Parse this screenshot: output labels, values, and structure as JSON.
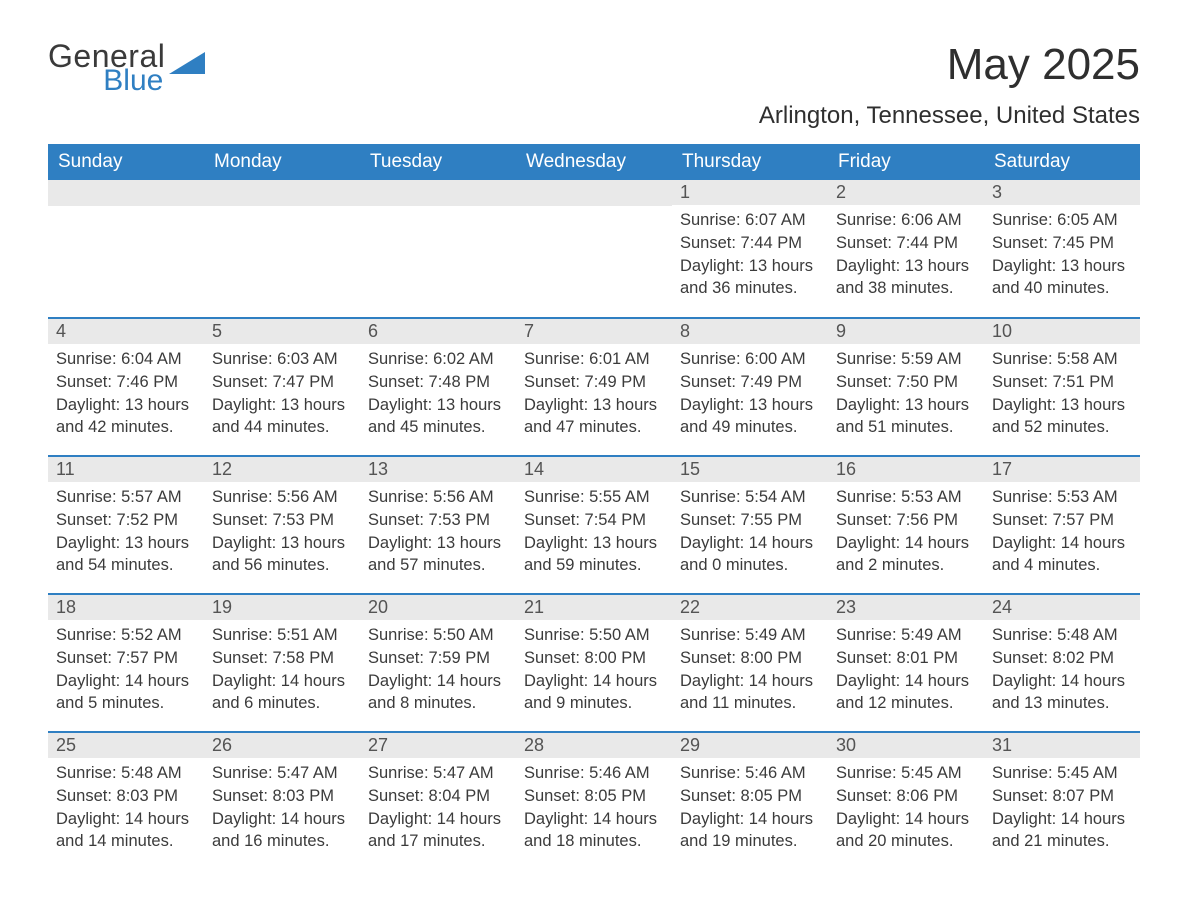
{
  "logo": {
    "general": "General",
    "blue": "Blue"
  },
  "title": "May 2025",
  "subtitle": "Arlington, Tennessee, United States",
  "colors": {
    "header_bg": "#2f7fc2",
    "header_text": "#ffffff",
    "daynum_bg": "#e9e9e9",
    "daynum_text": "#545454",
    "body_text": "#3b3b3b",
    "row_divider": "#2f7fc2",
    "page_bg": "#ffffff",
    "logo_gray": "#3a3a3a",
    "logo_blue": "#2f7fc2"
  },
  "weekdays": [
    "Sunday",
    "Monday",
    "Tuesday",
    "Wednesday",
    "Thursday",
    "Friday",
    "Saturday"
  ],
  "weeks": [
    [
      {
        "day": "",
        "sunrise": "",
        "sunset": "",
        "daylight": ""
      },
      {
        "day": "",
        "sunrise": "",
        "sunset": "",
        "daylight": ""
      },
      {
        "day": "",
        "sunrise": "",
        "sunset": "",
        "daylight": ""
      },
      {
        "day": "",
        "sunrise": "",
        "sunset": "",
        "daylight": ""
      },
      {
        "day": "1",
        "sunrise": "Sunrise: 6:07 AM",
        "sunset": "Sunset: 7:44 PM",
        "daylight": "Daylight: 13 hours and 36 minutes."
      },
      {
        "day": "2",
        "sunrise": "Sunrise: 6:06 AM",
        "sunset": "Sunset: 7:44 PM",
        "daylight": "Daylight: 13 hours and 38 minutes."
      },
      {
        "day": "3",
        "sunrise": "Sunrise: 6:05 AM",
        "sunset": "Sunset: 7:45 PM",
        "daylight": "Daylight: 13 hours and 40 minutes."
      }
    ],
    [
      {
        "day": "4",
        "sunrise": "Sunrise: 6:04 AM",
        "sunset": "Sunset: 7:46 PM",
        "daylight": "Daylight: 13 hours and 42 minutes."
      },
      {
        "day": "5",
        "sunrise": "Sunrise: 6:03 AM",
        "sunset": "Sunset: 7:47 PM",
        "daylight": "Daylight: 13 hours and 44 minutes."
      },
      {
        "day": "6",
        "sunrise": "Sunrise: 6:02 AM",
        "sunset": "Sunset: 7:48 PM",
        "daylight": "Daylight: 13 hours and 45 minutes."
      },
      {
        "day": "7",
        "sunrise": "Sunrise: 6:01 AM",
        "sunset": "Sunset: 7:49 PM",
        "daylight": "Daylight: 13 hours and 47 minutes."
      },
      {
        "day": "8",
        "sunrise": "Sunrise: 6:00 AM",
        "sunset": "Sunset: 7:49 PM",
        "daylight": "Daylight: 13 hours and 49 minutes."
      },
      {
        "day": "9",
        "sunrise": "Sunrise: 5:59 AM",
        "sunset": "Sunset: 7:50 PM",
        "daylight": "Daylight: 13 hours and 51 minutes."
      },
      {
        "day": "10",
        "sunrise": "Sunrise: 5:58 AM",
        "sunset": "Sunset: 7:51 PM",
        "daylight": "Daylight: 13 hours and 52 minutes."
      }
    ],
    [
      {
        "day": "11",
        "sunrise": "Sunrise: 5:57 AM",
        "sunset": "Sunset: 7:52 PM",
        "daylight": "Daylight: 13 hours and 54 minutes."
      },
      {
        "day": "12",
        "sunrise": "Sunrise: 5:56 AM",
        "sunset": "Sunset: 7:53 PM",
        "daylight": "Daylight: 13 hours and 56 minutes."
      },
      {
        "day": "13",
        "sunrise": "Sunrise: 5:56 AM",
        "sunset": "Sunset: 7:53 PM",
        "daylight": "Daylight: 13 hours and 57 minutes."
      },
      {
        "day": "14",
        "sunrise": "Sunrise: 5:55 AM",
        "sunset": "Sunset: 7:54 PM",
        "daylight": "Daylight: 13 hours and 59 minutes."
      },
      {
        "day": "15",
        "sunrise": "Sunrise: 5:54 AM",
        "sunset": "Sunset: 7:55 PM",
        "daylight": "Daylight: 14 hours and 0 minutes."
      },
      {
        "day": "16",
        "sunrise": "Sunrise: 5:53 AM",
        "sunset": "Sunset: 7:56 PM",
        "daylight": "Daylight: 14 hours and 2 minutes."
      },
      {
        "day": "17",
        "sunrise": "Sunrise: 5:53 AM",
        "sunset": "Sunset: 7:57 PM",
        "daylight": "Daylight: 14 hours and 4 minutes."
      }
    ],
    [
      {
        "day": "18",
        "sunrise": "Sunrise: 5:52 AM",
        "sunset": "Sunset: 7:57 PM",
        "daylight": "Daylight: 14 hours and 5 minutes."
      },
      {
        "day": "19",
        "sunrise": "Sunrise: 5:51 AM",
        "sunset": "Sunset: 7:58 PM",
        "daylight": "Daylight: 14 hours and 6 minutes."
      },
      {
        "day": "20",
        "sunrise": "Sunrise: 5:50 AM",
        "sunset": "Sunset: 7:59 PM",
        "daylight": "Daylight: 14 hours and 8 minutes."
      },
      {
        "day": "21",
        "sunrise": "Sunrise: 5:50 AM",
        "sunset": "Sunset: 8:00 PM",
        "daylight": "Daylight: 14 hours and 9 minutes."
      },
      {
        "day": "22",
        "sunrise": "Sunrise: 5:49 AM",
        "sunset": "Sunset: 8:00 PM",
        "daylight": "Daylight: 14 hours and 11 minutes."
      },
      {
        "day": "23",
        "sunrise": "Sunrise: 5:49 AM",
        "sunset": "Sunset: 8:01 PM",
        "daylight": "Daylight: 14 hours and 12 minutes."
      },
      {
        "day": "24",
        "sunrise": "Sunrise: 5:48 AM",
        "sunset": "Sunset: 8:02 PM",
        "daylight": "Daylight: 14 hours and 13 minutes."
      }
    ],
    [
      {
        "day": "25",
        "sunrise": "Sunrise: 5:48 AM",
        "sunset": "Sunset: 8:03 PM",
        "daylight": "Daylight: 14 hours and 14 minutes."
      },
      {
        "day": "26",
        "sunrise": "Sunrise: 5:47 AM",
        "sunset": "Sunset: 8:03 PM",
        "daylight": "Daylight: 14 hours and 16 minutes."
      },
      {
        "day": "27",
        "sunrise": "Sunrise: 5:47 AM",
        "sunset": "Sunset: 8:04 PM",
        "daylight": "Daylight: 14 hours and 17 minutes."
      },
      {
        "day": "28",
        "sunrise": "Sunrise: 5:46 AM",
        "sunset": "Sunset: 8:05 PM",
        "daylight": "Daylight: 14 hours and 18 minutes."
      },
      {
        "day": "29",
        "sunrise": "Sunrise: 5:46 AM",
        "sunset": "Sunset: 8:05 PM",
        "daylight": "Daylight: 14 hours and 19 minutes."
      },
      {
        "day": "30",
        "sunrise": "Sunrise: 5:45 AM",
        "sunset": "Sunset: 8:06 PM",
        "daylight": "Daylight: 14 hours and 20 minutes."
      },
      {
        "day": "31",
        "sunrise": "Sunrise: 5:45 AM",
        "sunset": "Sunset: 8:07 PM",
        "daylight": "Daylight: 14 hours and 21 minutes."
      }
    ]
  ]
}
